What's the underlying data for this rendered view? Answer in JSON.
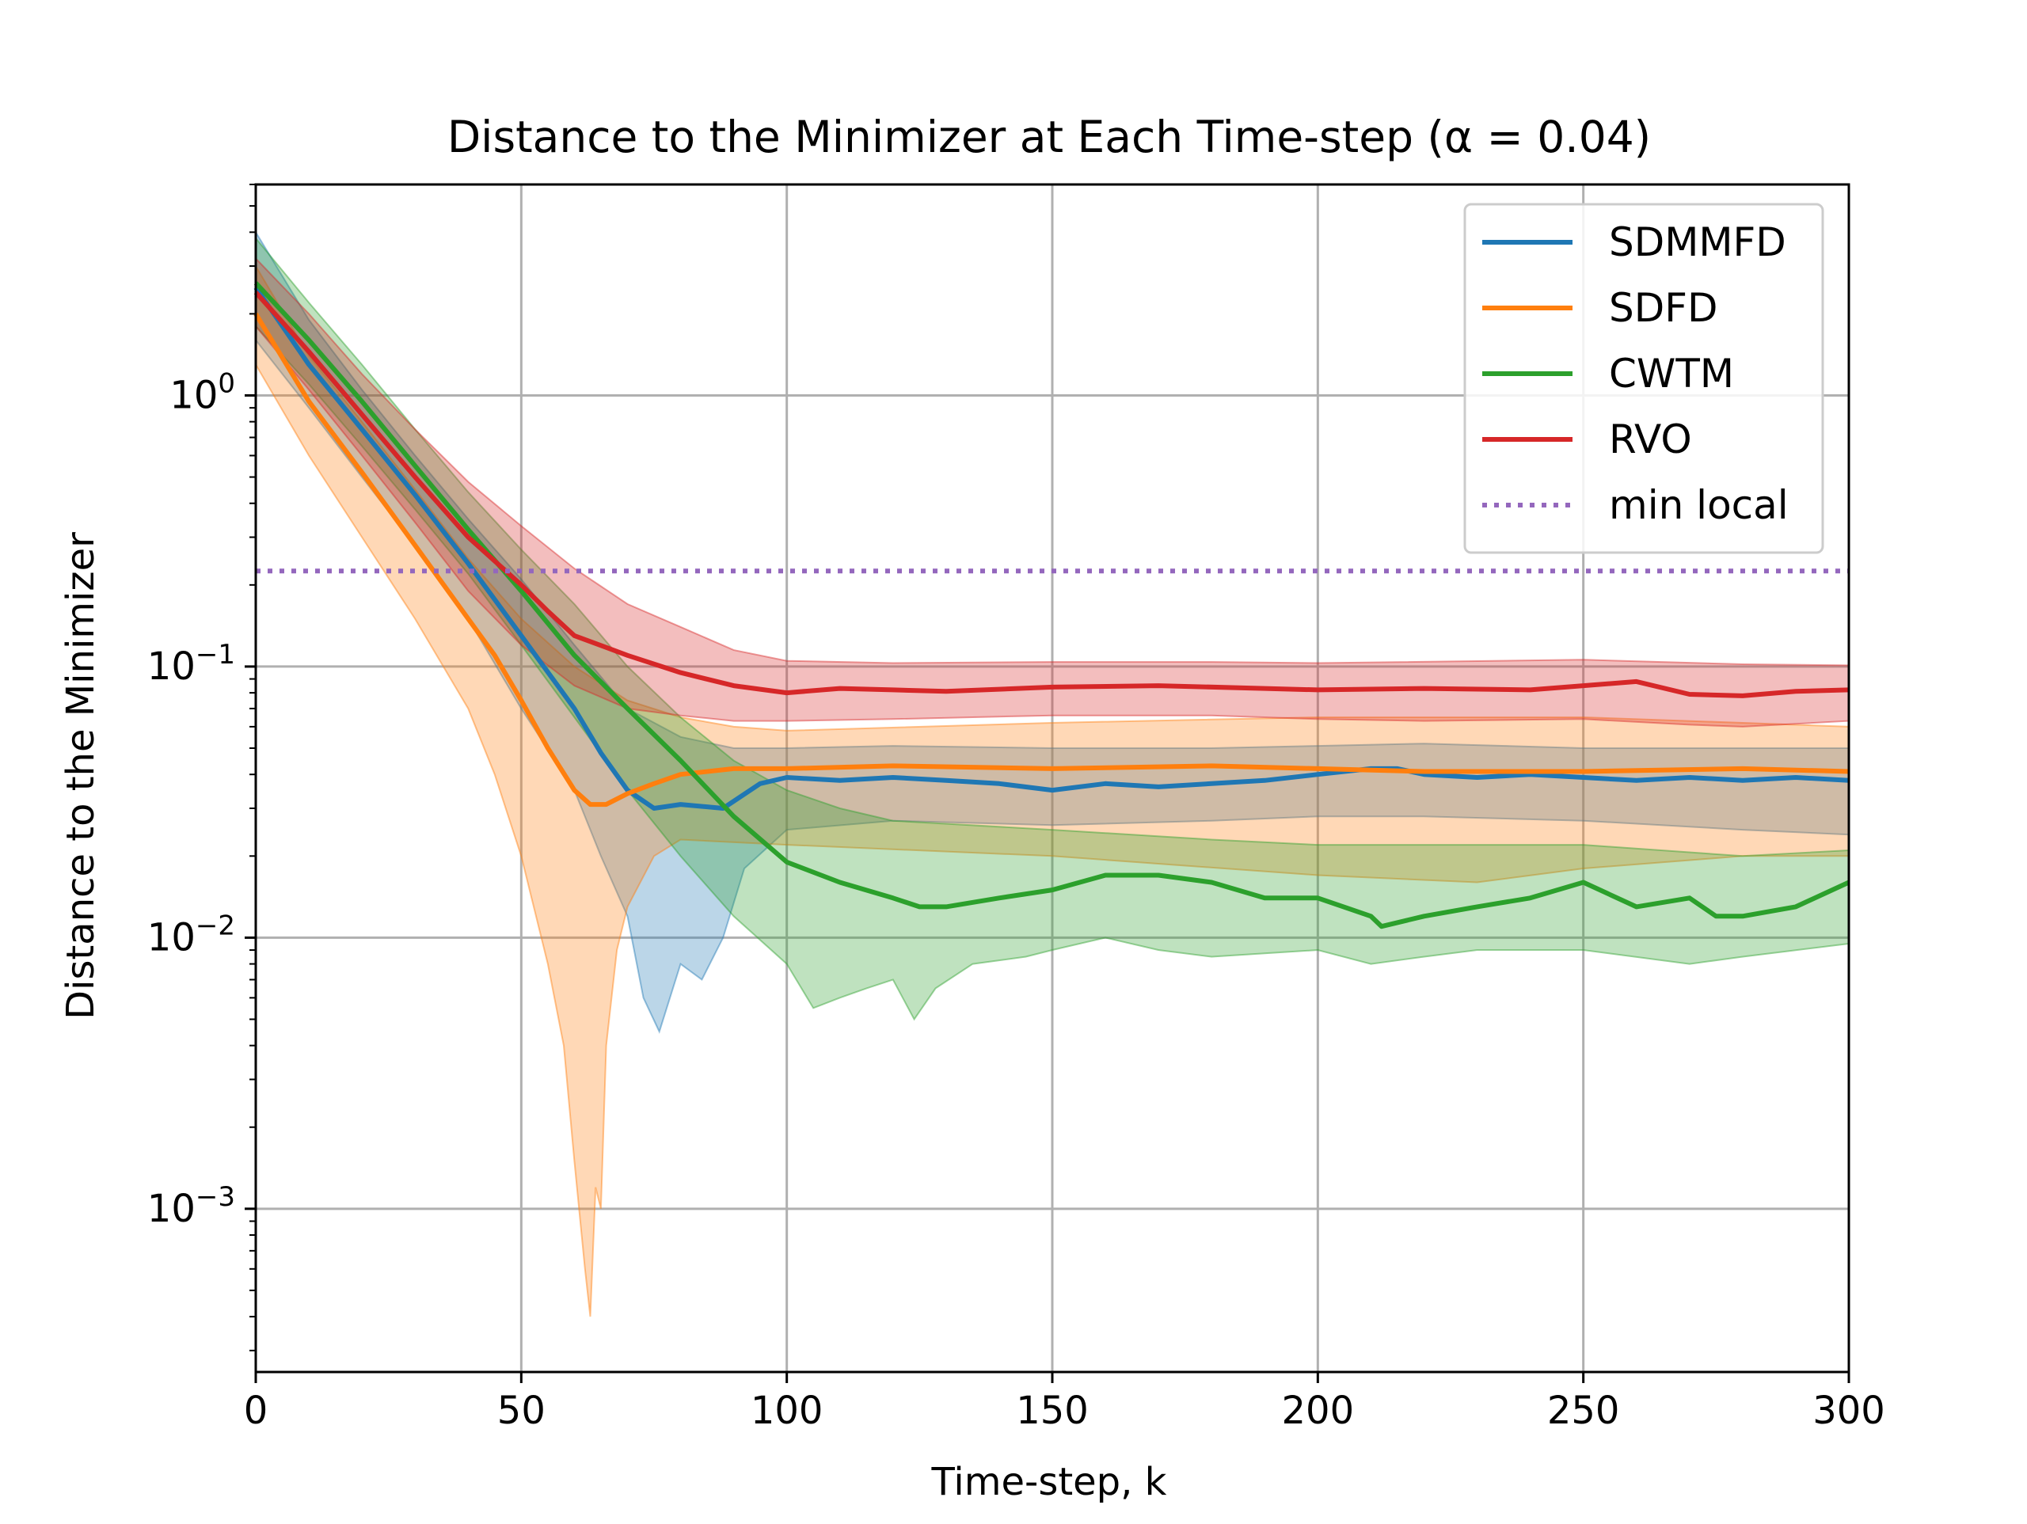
{
  "chart_data": {
    "type": "line",
    "title": "Distance to the Minimizer at Each Time-step (α = 0.04)",
    "xlabel": "Time-step, k",
    "ylabel": "Distance to the Minimizer",
    "xlim": [
      0,
      300
    ],
    "ylim": [
      0.00025,
      6.0
    ],
    "yscale": "log",
    "grid": true,
    "legend_position": "top-right",
    "x_ticks": [
      0,
      50,
      100,
      150,
      200,
      250,
      300
    ],
    "y_ticks": [
      {
        "value": 1,
        "base": "10",
        "exp": "0"
      },
      {
        "value": 0.1,
        "base": "10",
        "exp": "−1"
      },
      {
        "value": 0.01,
        "base": "10",
        "exp": "−2"
      },
      {
        "value": 0.001,
        "base": "10",
        "exp": "−3"
      }
    ],
    "series": [
      {
        "name": "SDMMFD",
        "color": "#1f77b4",
        "points": [
          [
            0,
            2.5
          ],
          [
            10,
            1.3
          ],
          [
            20,
            0.75
          ],
          [
            30,
            0.43
          ],
          [
            40,
            0.24
          ],
          [
            50,
            0.13
          ],
          [
            60,
            0.07
          ],
          [
            65,
            0.048
          ],
          [
            70,
            0.035
          ],
          [
            75,
            0.03
          ],
          [
            80,
            0.031
          ],
          [
            88,
            0.03
          ],
          [
            95,
            0.037
          ],
          [
            100,
            0.039
          ],
          [
            110,
            0.038
          ],
          [
            120,
            0.039
          ],
          [
            130,
            0.038
          ],
          [
            140,
            0.037
          ],
          [
            150,
            0.035
          ],
          [
            160,
            0.037
          ],
          [
            170,
            0.036
          ],
          [
            180,
            0.037
          ],
          [
            190,
            0.038
          ],
          [
            200,
            0.04
          ],
          [
            210,
            0.042
          ],
          [
            215,
            0.042
          ],
          [
            220,
            0.04
          ],
          [
            230,
            0.039
          ],
          [
            240,
            0.04
          ],
          [
            250,
            0.039
          ],
          [
            260,
            0.038
          ],
          [
            270,
            0.039
          ],
          [
            280,
            0.038
          ],
          [
            290,
            0.039
          ],
          [
            300,
            0.038
          ]
        ],
        "band_upper": [
          [
            0,
            4.0
          ],
          [
            10,
            1.9
          ],
          [
            20,
            1.05
          ],
          [
            30,
            0.6
          ],
          [
            40,
            0.35
          ],
          [
            50,
            0.21
          ],
          [
            60,
            0.12
          ],
          [
            70,
            0.07
          ],
          [
            80,
            0.055
          ],
          [
            90,
            0.05
          ],
          [
            100,
            0.05
          ],
          [
            120,
            0.051
          ],
          [
            150,
            0.05
          ],
          [
            180,
            0.05
          ],
          [
            200,
            0.051
          ],
          [
            220,
            0.052
          ],
          [
            250,
            0.05
          ],
          [
            280,
            0.05
          ],
          [
            300,
            0.05
          ]
        ],
        "band_lower": [
          [
            0,
            1.6
          ],
          [
            10,
            0.9
          ],
          [
            20,
            0.5
          ],
          [
            30,
            0.28
          ],
          [
            40,
            0.15
          ],
          [
            50,
            0.07
          ],
          [
            60,
            0.035
          ],
          [
            65,
            0.02
          ],
          [
            70,
            0.012
          ],
          [
            73,
            0.006
          ],
          [
            76,
            0.0045
          ],
          [
            80,
            0.008
          ],
          [
            84,
            0.007
          ],
          [
            88,
            0.01
          ],
          [
            92,
            0.018
          ],
          [
            100,
            0.025
          ],
          [
            120,
            0.027
          ],
          [
            150,
            0.026
          ],
          [
            180,
            0.027
          ],
          [
            200,
            0.028
          ],
          [
            220,
            0.028
          ],
          [
            250,
            0.027
          ],
          [
            280,
            0.025
          ],
          [
            300,
            0.024
          ]
        ]
      },
      {
        "name": "SDFD",
        "color": "#ff7f0e",
        "points": [
          [
            0,
            2.0
          ],
          [
            10,
            0.95
          ],
          [
            20,
            0.52
          ],
          [
            30,
            0.28
          ],
          [
            40,
            0.15
          ],
          [
            45,
            0.11
          ],
          [
            50,
            0.075
          ],
          [
            55,
            0.05
          ],
          [
            60,
            0.035
          ],
          [
            63,
            0.031
          ],
          [
            66,
            0.031
          ],
          [
            70,
            0.034
          ],
          [
            75,
            0.037
          ],
          [
            80,
            0.04
          ],
          [
            90,
            0.042
          ],
          [
            100,
            0.042
          ],
          [
            120,
            0.043
          ],
          [
            150,
            0.042
          ],
          [
            180,
            0.043
          ],
          [
            200,
            0.042
          ],
          [
            220,
            0.041
          ],
          [
            250,
            0.041
          ],
          [
            280,
            0.042
          ],
          [
            300,
            0.041
          ]
        ],
        "band_upper": [
          [
            0,
            3.0
          ],
          [
            10,
            1.4
          ],
          [
            20,
            0.8
          ],
          [
            30,
            0.45
          ],
          [
            40,
            0.25
          ],
          [
            50,
            0.15
          ],
          [
            60,
            0.1
          ],
          [
            70,
            0.075
          ],
          [
            80,
            0.065
          ],
          [
            90,
            0.06
          ],
          [
            100,
            0.058
          ],
          [
            150,
            0.062
          ],
          [
            200,
            0.065
          ],
          [
            250,
            0.065
          ],
          [
            280,
            0.062
          ],
          [
            300,
            0.06
          ]
        ],
        "band_lower": [
          [
            0,
            1.3
          ],
          [
            10,
            0.6
          ],
          [
            20,
            0.3
          ],
          [
            30,
            0.15
          ],
          [
            40,
            0.07
          ],
          [
            45,
            0.04
          ],
          [
            50,
            0.02
          ],
          [
            55,
            0.008
          ],
          [
            58,
            0.004
          ],
          [
            60,
            0.0015
          ],
          [
            62,
            0.0006
          ],
          [
            63,
            0.0004
          ],
          [
            64,
            0.0012
          ],
          [
            65,
            0.001
          ],
          [
            66,
            0.004
          ],
          [
            68,
            0.009
          ],
          [
            70,
            0.013
          ],
          [
            75,
            0.02
          ],
          [
            80,
            0.023
          ],
          [
            100,
            0.022
          ],
          [
            150,
            0.02
          ],
          [
            200,
            0.017
          ],
          [
            230,
            0.016
          ],
          [
            250,
            0.018
          ],
          [
            280,
            0.02
          ],
          [
            300,
            0.02
          ]
        ]
      },
      {
        "name": "CWTM",
        "color": "#2ca02c",
        "points": [
          [
            0,
            2.6
          ],
          [
            10,
            1.6
          ],
          [
            20,
            0.95
          ],
          [
            30,
            0.55
          ],
          [
            40,
            0.32
          ],
          [
            50,
            0.19
          ],
          [
            60,
            0.11
          ],
          [
            70,
            0.07
          ],
          [
            80,
            0.045
          ],
          [
            90,
            0.028
          ],
          [
            100,
            0.019
          ],
          [
            110,
            0.016
          ],
          [
            120,
            0.014
          ],
          [
            125,
            0.013
          ],
          [
            130,
            0.013
          ],
          [
            140,
            0.014
          ],
          [
            150,
            0.015
          ],
          [
            160,
            0.017
          ],
          [
            170,
            0.017
          ],
          [
            180,
            0.016
          ],
          [
            190,
            0.014
          ],
          [
            200,
            0.014
          ],
          [
            210,
            0.012
          ],
          [
            212,
            0.011
          ],
          [
            220,
            0.012
          ],
          [
            230,
            0.013
          ],
          [
            240,
            0.014
          ],
          [
            250,
            0.016
          ],
          [
            260,
            0.013
          ],
          [
            270,
            0.014
          ],
          [
            275,
            0.012
          ],
          [
            280,
            0.012
          ],
          [
            290,
            0.013
          ],
          [
            300,
            0.016
          ]
        ],
        "band_upper": [
          [
            0,
            3.8
          ],
          [
            10,
            2.2
          ],
          [
            20,
            1.3
          ],
          [
            30,
            0.75
          ],
          [
            40,
            0.44
          ],
          [
            50,
            0.27
          ],
          [
            60,
            0.17
          ],
          [
            70,
            0.1
          ],
          [
            80,
            0.065
          ],
          [
            90,
            0.045
          ],
          [
            100,
            0.035
          ],
          [
            110,
            0.03
          ],
          [
            120,
            0.027
          ],
          [
            150,
            0.025
          ],
          [
            180,
            0.023
          ],
          [
            200,
            0.022
          ],
          [
            220,
            0.022
          ],
          [
            250,
            0.022
          ],
          [
            280,
            0.02
          ],
          [
            300,
            0.021
          ]
        ],
        "band_lower": [
          [
            0,
            1.8
          ],
          [
            10,
            1.1
          ],
          [
            20,
            0.65
          ],
          [
            30,
            0.38
          ],
          [
            40,
            0.22
          ],
          [
            50,
            0.12
          ],
          [
            60,
            0.065
          ],
          [
            70,
            0.035
          ],
          [
            80,
            0.02
          ],
          [
            90,
            0.012
          ],
          [
            100,
            0.008
          ],
          [
            105,
            0.0055
          ],
          [
            110,
            0.006
          ],
          [
            115,
            0.0065
          ],
          [
            120,
            0.007
          ],
          [
            124,
            0.005
          ],
          [
            128,
            0.0065
          ],
          [
            135,
            0.008
          ],
          [
            145,
            0.0085
          ],
          [
            150,
            0.009
          ],
          [
            160,
            0.01
          ],
          [
            170,
            0.009
          ],
          [
            180,
            0.0085
          ],
          [
            200,
            0.009
          ],
          [
            210,
            0.008
          ],
          [
            220,
            0.0085
          ],
          [
            230,
            0.009
          ],
          [
            250,
            0.009
          ],
          [
            270,
            0.008
          ],
          [
            280,
            0.0085
          ],
          [
            300,
            0.0095
          ]
        ]
      },
      {
        "name": "RVO",
        "color": "#d62728",
        "points": [
          [
            0,
            2.4
          ],
          [
            10,
            1.45
          ],
          [
            20,
            0.85
          ],
          [
            30,
            0.5
          ],
          [
            40,
            0.3
          ],
          [
            50,
            0.2
          ],
          [
            55,
            0.16
          ],
          [
            60,
            0.13
          ],
          [
            70,
            0.11
          ],
          [
            80,
            0.095
          ],
          [
            90,
            0.085
          ],
          [
            100,
            0.08
          ],
          [
            110,
            0.083
          ],
          [
            120,
            0.082
          ],
          [
            130,
            0.081
          ],
          [
            150,
            0.084
          ],
          [
            170,
            0.085
          ],
          [
            190,
            0.083
          ],
          [
            200,
            0.082
          ],
          [
            220,
            0.083
          ],
          [
            240,
            0.082
          ],
          [
            250,
            0.085
          ],
          [
            260,
            0.088
          ],
          [
            270,
            0.079
          ],
          [
            280,
            0.078
          ],
          [
            290,
            0.081
          ],
          [
            300,
            0.082
          ]
        ],
        "band_upper": [
          [
            0,
            3.2
          ],
          [
            10,
            2.0
          ],
          [
            20,
            1.2
          ],
          [
            30,
            0.75
          ],
          [
            40,
            0.48
          ],
          [
            50,
            0.33
          ],
          [
            60,
            0.23
          ],
          [
            70,
            0.17
          ],
          [
            80,
            0.14
          ],
          [
            90,
            0.115
          ],
          [
            100,
            0.105
          ],
          [
            120,
            0.103
          ],
          [
            150,
            0.104
          ],
          [
            180,
            0.104
          ],
          [
            200,
            0.103
          ],
          [
            250,
            0.106
          ],
          [
            280,
            0.102
          ],
          [
            300,
            0.101
          ]
        ],
        "band_lower": [
          [
            0,
            1.8
          ],
          [
            10,
            1.05
          ],
          [
            20,
            0.6
          ],
          [
            30,
            0.34
          ],
          [
            40,
            0.19
          ],
          [
            50,
            0.12
          ],
          [
            60,
            0.085
          ],
          [
            70,
            0.07
          ],
          [
            80,
            0.066
          ],
          [
            90,
            0.063
          ],
          [
            100,
            0.063
          ],
          [
            120,
            0.064
          ],
          [
            150,
            0.066
          ],
          [
            180,
            0.066
          ],
          [
            200,
            0.064
          ],
          [
            220,
            0.063
          ],
          [
            250,
            0.064
          ],
          [
            270,
            0.061
          ],
          [
            280,
            0.06
          ],
          [
            300,
            0.063
          ]
        ]
      },
      {
        "name": "min local",
        "color": "#9467bd",
        "style": "dotted",
        "points": [
          [
            0,
            0.225
          ],
          [
            300,
            0.225
          ]
        ]
      }
    ]
  }
}
